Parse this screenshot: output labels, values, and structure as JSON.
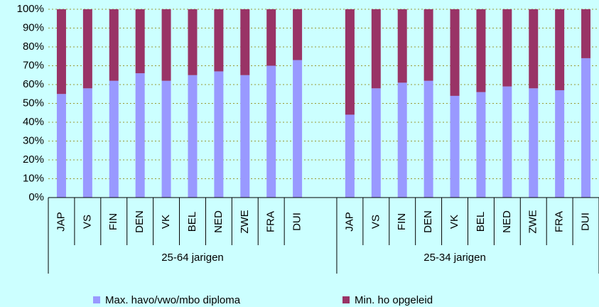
{
  "chart_data": {
    "type": "stacked_bar",
    "categories": [
      "JAP",
      "VS",
      "FIN",
      "DEN",
      "VK",
      "BEL",
      "NED",
      "ZWE",
      "FRA",
      "DUI",
      null,
      "JAP",
      "VS",
      "FIN",
      "DEN",
      "VK",
      "BEL",
      "NED",
      "ZWE",
      "FRA",
      "DUI"
    ],
    "groups": [
      "25-64 jarigen",
      "25-34 jarigen"
    ],
    "series": [
      {
        "name": "Max. havo/vwo/mbo diploma",
        "color": "#9999ff",
        "values": [
          55,
          58,
          62,
          66,
          62,
          65,
          67,
          65,
          70,
          73,
          null,
          44,
          58,
          61,
          62,
          54,
          56,
          59,
          58,
          57,
          74
        ]
      },
      {
        "name": "Min. ho opgeleid",
        "color": "#993366",
        "values": [
          45,
          42,
          38,
          34,
          38,
          35,
          33,
          35,
          30,
          27,
          null,
          56,
          42,
          39,
          38,
          46,
          44,
          41,
          42,
          43,
          26
        ]
      }
    ],
    "ylim": [
      0,
      100
    ],
    "yticks": [
      {
        "value": 0,
        "label": "0%"
      },
      {
        "value": 10,
        "label": "10%"
      },
      {
        "value": 20,
        "label": "20%"
      },
      {
        "value": 30,
        "label": "30%"
      },
      {
        "value": 40,
        "label": "40%"
      },
      {
        "value": 50,
        "label": "50%"
      },
      {
        "value": 60,
        "label": "60%"
      },
      {
        "value": 70,
        "label": "70%"
      },
      {
        "value": 80,
        "label": "80%"
      },
      {
        "value": 90,
        "label": "90%"
      },
      {
        "value": 100,
        "label": "100%"
      }
    ],
    "grid": true
  }
}
